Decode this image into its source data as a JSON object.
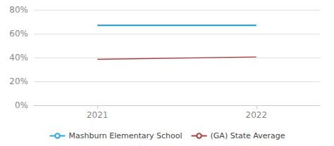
{
  "chart_data": {
    "type": "line",
    "x": [
      2021,
      2022
    ],
    "series": [
      {
        "name": "Mashburn Elementary School",
        "color": "#29a8e0",
        "values": [
          0.67,
          0.67
        ]
      },
      {
        "name": "(GA) State Average",
        "color": "#a84040",
        "values": [
          0.385,
          0.405
        ]
      }
    ],
    "xlim": [
      2020.6,
      2022.4
    ],
    "xticks": [
      2021,
      2022
    ],
    "ylim": [
      0,
      0.8
    ],
    "yticks": [
      {
        "value": 0.0,
        "label": "0%"
      },
      {
        "value": 0.2,
        "label": "20%"
      },
      {
        "value": 0.4,
        "label": "40%"
      },
      {
        "value": 0.6,
        "label": "60%"
      },
      {
        "value": 0.8,
        "label": "80%"
      }
    ],
    "grid": true,
    "legend": "bottom"
  }
}
